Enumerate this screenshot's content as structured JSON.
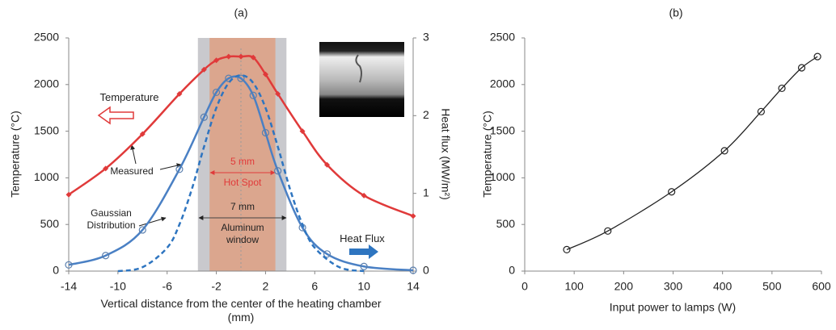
{
  "chart_data": [
    {
      "type": "line",
      "title": "(a)",
      "x_label": "Vertical distance from the center of the heating chamber (mm)",
      "y_label": "Temperature (°C)",
      "y2_label": "Heat flux (MW/m²)",
      "xlim": [
        -14,
        14
      ],
      "xticks": [
        -14,
        -10,
        -6,
        -2,
        2,
        6,
        10,
        14
      ],
      "ylim": [
        0,
        2500
      ],
      "yticks": [
        0,
        500,
        1000,
        1500,
        2000,
        2500
      ],
      "y2lim": [
        0,
        3
      ],
      "y2ticks": [
        0,
        1,
        2,
        3
      ],
      "regions": [
        {
          "from": -3.5,
          "to": 3.7,
          "color": "#c9c9cd"
        },
        {
          "from": -2.55,
          "to": 2.8,
          "color": "#dba68e"
        }
      ],
      "series": [
        {
          "name": "Temperature",
          "color": "#e03a3a",
          "marker": "diamond",
          "dashed": false,
          "x": [
            -14,
            -11,
            -8,
            -5,
            -3,
            -2,
            -1,
            0,
            1,
            2,
            3,
            5,
            7,
            10,
            14
          ],
          "values": [
            820,
            1100,
            1470,
            1900,
            2160,
            2260,
            2300,
            2300,
            2290,
            2110,
            1900,
            1500,
            1140,
            810,
            590
          ]
        },
        {
          "name": "Measured",
          "color": "#4a80c4",
          "marker": "circle",
          "dashed": false,
          "axis": "y2",
          "x": [
            -14,
            -11,
            -8,
            -5,
            -3,
            -2,
            -1,
            0,
            1,
            2,
            3,
            5,
            7,
            10,
            14
          ],
          "values": [
            0.08,
            0.2,
            0.53,
            1.31,
            1.98,
            2.3,
            2.48,
            2.48,
            2.26,
            1.78,
            1.29,
            0.56,
            0.22,
            0.06,
            0.01
          ]
        },
        {
          "name": "Gaussian Distribution",
          "color": "#2e75c0",
          "marker": "none",
          "dashed": true,
          "axis": "y2",
          "x": [
            -10,
            -8,
            -6,
            -5,
            -4,
            -3,
            -2,
            -1,
            0,
            1,
            2,
            3,
            4,
            5,
            6,
            8,
            10
          ],
          "values": [
            0,
            0.05,
            0.3,
            0.6,
            1.05,
            1.6,
            2.1,
            2.42,
            2.52,
            2.42,
            2.1,
            1.6,
            1.05,
            0.6,
            0.3,
            0.05,
            0
          ]
        }
      ],
      "annotations": [
        "Heat Flux",
        "5 mm",
        "Hot Spot",
        "7 mm",
        "Aluminum window"
      ]
    },
    {
      "type": "line",
      "title": "(b)",
      "x_label": "Input power to lamps (W)",
      "y_label": "Temperature (°C)",
      "xlim": [
        0,
        600
      ],
      "xticks": [
        0,
        100,
        200,
        300,
        400,
        500,
        600
      ],
      "ylim": [
        0,
        2500
      ],
      "yticks": [
        0,
        500,
        1000,
        1500,
        2000,
        2500
      ],
      "series": [
        {
          "color": "#222222",
          "marker": "circle",
          "dashed": false,
          "x": [
            85,
            168,
            297,
            404,
            478,
            520,
            560,
            592
          ],
          "values": [
            230,
            430,
            850,
            1290,
            1710,
            1960,
            2180,
            2300
          ]
        }
      ]
    }
  ]
}
